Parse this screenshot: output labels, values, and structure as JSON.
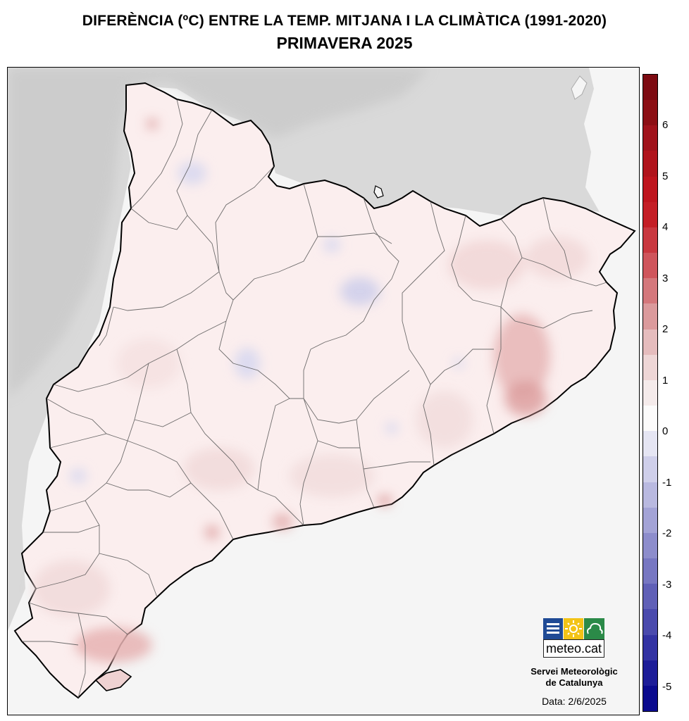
{
  "header": {
    "title": "DIFERÈNCIA (ºC) ENTRE LA TEMP. MITJANA I LA CLIMÀTICA (1991-2020)",
    "subtitle": "PRIMAVERA 2025"
  },
  "legend": {
    "labels": [
      "6",
      "5",
      "4",
      "3",
      "2",
      "1",
      "0",
      "-1",
      "-2",
      "-3",
      "-4",
      "-5"
    ],
    "colors": [
      "#7d0b12",
      "#8c0f14",
      "#a0131b",
      "#b0141c",
      "#be151e",
      "#c41e26",
      "#c93840",
      "#cf555c",
      "#d4787c",
      "#db9a9c",
      "#e5bcbd",
      "#eed6d6",
      "#f5ebeb",
      "#fcfbfb",
      "#e5e5f3",
      "#cfcfea",
      "#b9b9e0",
      "#a3a3d6",
      "#8d8dcc",
      "#7777c2",
      "#6060b7",
      "#4a4aad",
      "#3333a3",
      "#1d1d98",
      "#0b0b8e"
    ]
  },
  "branding": {
    "logo_text": "meteo.cat",
    "org_line1": "Servei Meteorològic",
    "org_line2": "de Catalunya",
    "date": "Data: 2/6/2025"
  },
  "map": {
    "colors": {
      "land_base": "#fbeeee",
      "relief": "#cfcfcf",
      "sea": "#f5f5f5",
      "warm_patch": "#efd2d2",
      "warmer_patch": "#e6b2b2",
      "cool_patch": "#dcdcf0",
      "border": "#000000"
    }
  }
}
